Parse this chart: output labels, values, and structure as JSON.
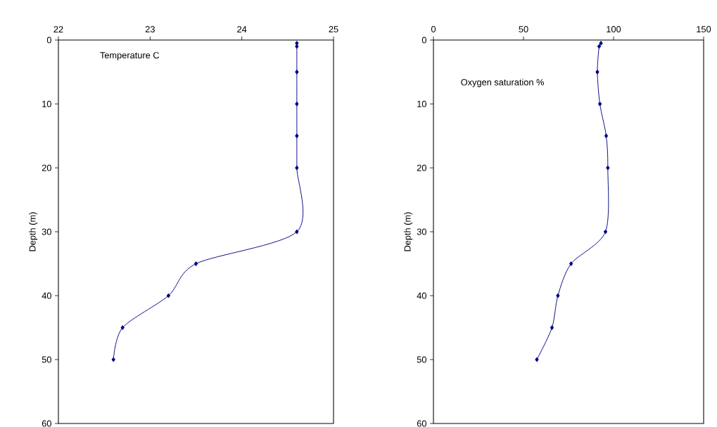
{
  "chart_data": [
    {
      "type": "line",
      "marker": "diamond",
      "line_style": "solid",
      "ylabel": "Depth (m)",
      "annotations": [
        "Temperature C"
      ],
      "xlim": [
        22,
        25
      ],
      "xticks": [
        22,
        23,
        24,
        25
      ],
      "ylim": [
        60,
        0
      ],
      "yticks": [
        0,
        10,
        20,
        30,
        40,
        50,
        60
      ],
      "series": [
        {
          "color": "#000080",
          "x": [
            24.6,
            24.6,
            24.6,
            24.6,
            24.6,
            24.6,
            24.6,
            23.5,
            23.2,
            22.7,
            22.6
          ],
          "values": [
            0.5,
            1,
            5,
            10,
            15,
            20,
            30,
            35,
            40,
            45,
            50
          ]
        }
      ]
    },
    {
      "type": "line",
      "marker": "diamond",
      "line_style": "solid",
      "ylabel": "Depth (m)",
      "annotations": [
        "Oxygen saturation %"
      ],
      "xlim": [
        0,
        150
      ],
      "xticks": [
        0,
        50,
        100,
        150
      ],
      "ylim": [
        60,
        0
      ],
      "yticks": [
        0,
        10,
        20,
        30,
        40,
        50,
        60
      ],
      "series": [
        {
          "color": "#000080",
          "x": [
            93,
            92,
            91,
            92.4,
            95.9,
            96.8,
            95.5,
            76.4,
            69.1,
            65.8,
            57.4
          ],
          "values": [
            0.5,
            1,
            5,
            10,
            15,
            20,
            30,
            35,
            40,
            45,
            50
          ]
        }
      ]
    }
  ]
}
